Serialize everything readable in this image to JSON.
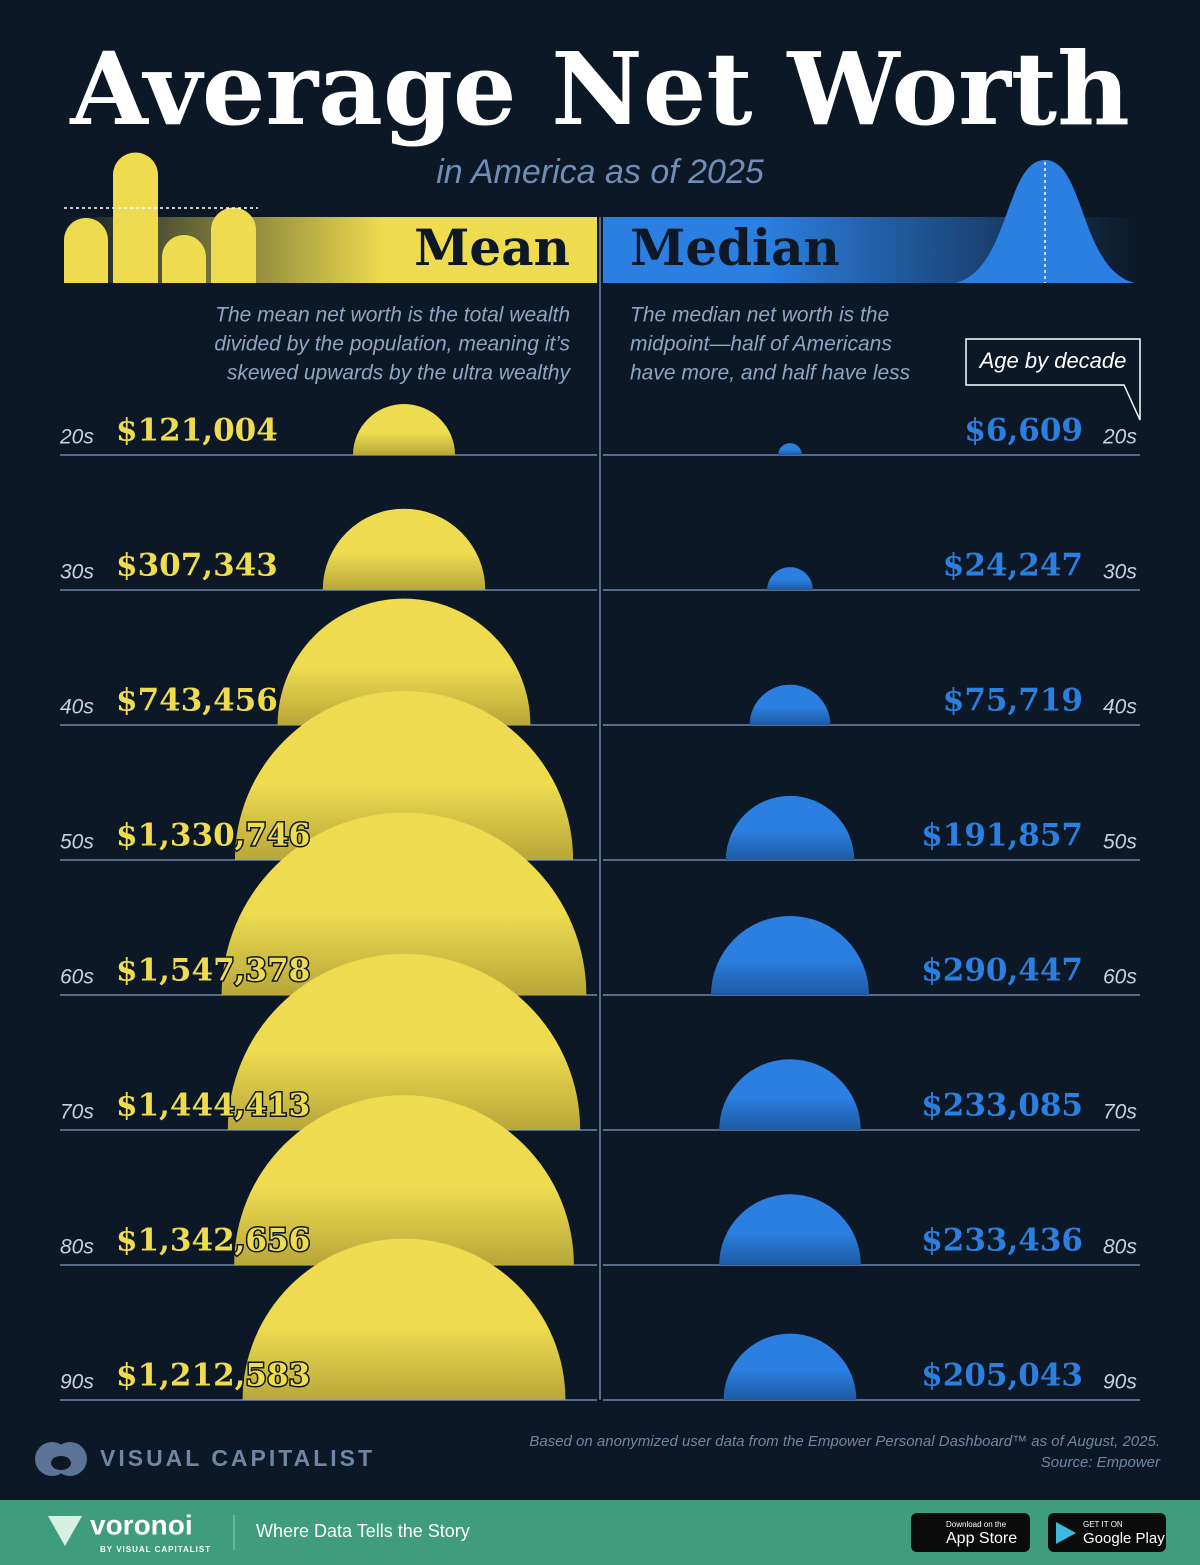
{
  "chart_data": {
    "type": "semicircle",
    "title": "Average Net Worth",
    "subtitle": "in America as of 2025",
    "categories": [
      "20s",
      "30s",
      "40s",
      "50s",
      "60s",
      "70s",
      "80s",
      "90s"
    ],
    "series": [
      {
        "name": "Mean",
        "color": "#eedb4f",
        "description": [
          "The mean net worth is the total wealth",
          "divided by the population, meaning it’s",
          "skewed upwards by the ultra wealthy"
        ],
        "values": [
          121004,
          307343,
          743456,
          1330746,
          1547378,
          1444413,
          1342656,
          1212583
        ],
        "value_labels": [
          "$121,004",
          "$307,343",
          "$743,456",
          "$1,330,746",
          "$1,547,378",
          "$1,444,413",
          "$1,342,656",
          "$1,212,583"
        ]
      },
      {
        "name": "Median",
        "color": "#2b7fe0",
        "description": [
          "The median net worth is the",
          "midpoint—half of Americans",
          "have more, and half have less"
        ],
        "values": [
          6609,
          24247,
          75719,
          191857,
          290447,
          233085,
          233436,
          205043
        ],
        "value_labels": [
          "$6,609",
          "$24,247",
          "$75,719",
          "$191,857",
          "$290,447",
          "$233,085",
          "$233,436",
          "$205,043"
        ]
      }
    ],
    "category_axis_label": "Age by decade",
    "note": "Based on anonymized user data from the Empower Personal Dashboard™ as of August, 2025.",
    "source": "Source: Empower"
  },
  "footer": {
    "brand": "VISUAL CAPITALIST",
    "logo": "voronoi",
    "logo_sub": "BY VISUAL CAPITALIST",
    "tagline": "Where Data Tells the Story",
    "app_store_small": "Download on the",
    "app_store": "App Store",
    "google_small": "GET IT ON",
    "google": "Google Play"
  }
}
